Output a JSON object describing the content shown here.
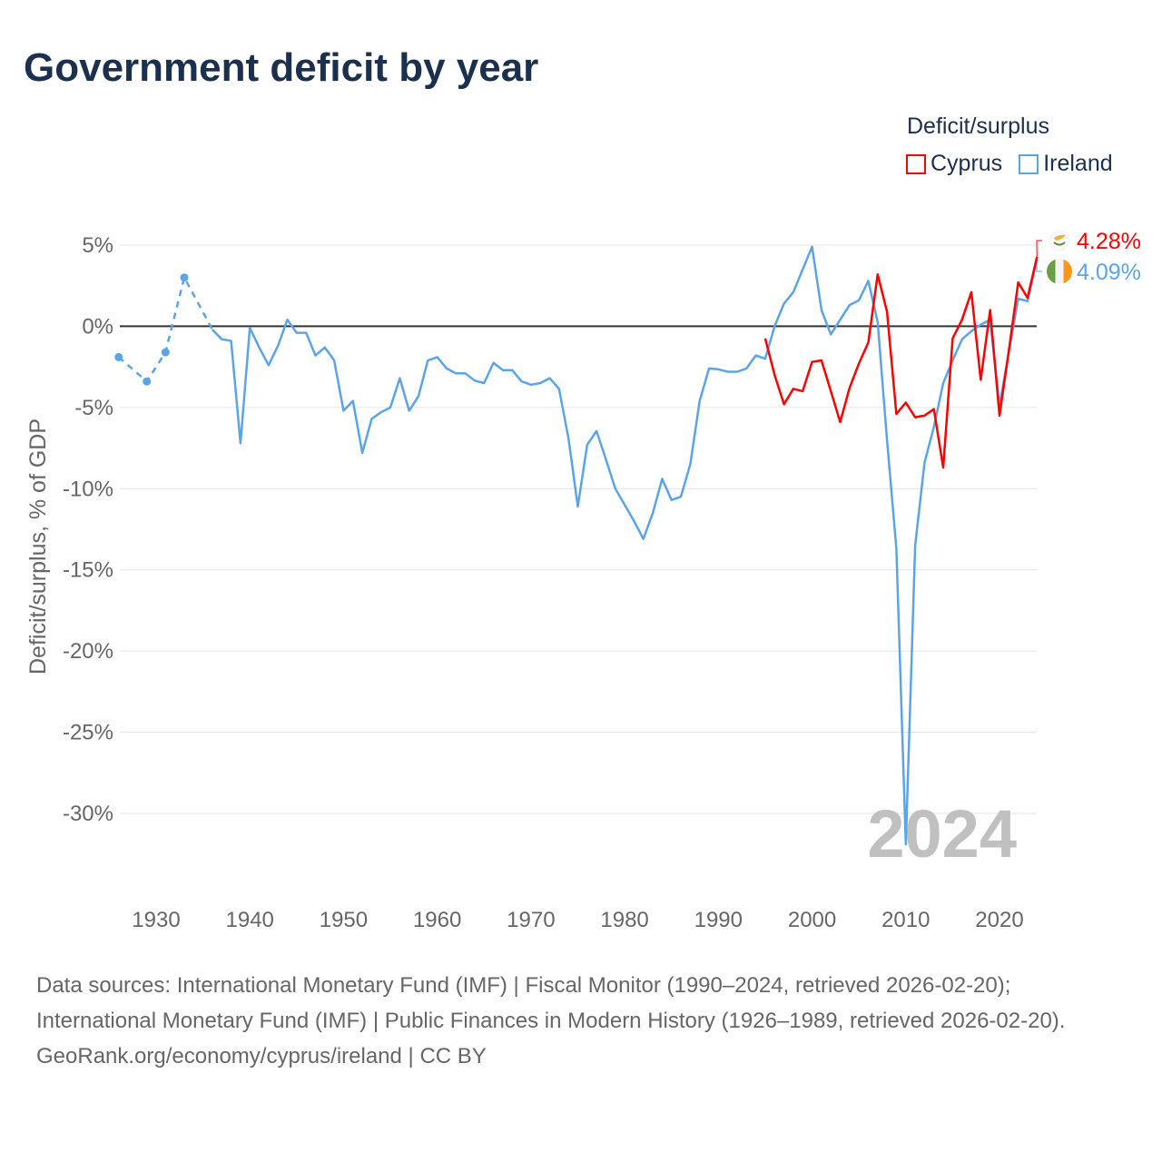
{
  "title": "Government deficit by year",
  "legend": {
    "title": "Deficit/surplus",
    "items": [
      {
        "name": "Cyprus",
        "color": "#ff0000"
      },
      {
        "name": "Ireland",
        "color": "#5ba4ea"
      }
    ]
  },
  "footer": {
    "sources": "Data sources: International Monetary Fund (IMF) | Fiscal Monitor (1990–2024, retrieved 2026-02-20); International Monetary Fund (IMF) | Public Finances in Modern History (1926–1989, retrieved 2026-02-20).",
    "credit": "GeoRank.org/economy/cyprus/ireland | CC BY"
  },
  "chart_data": {
    "type": "line",
    "title": "Government deficit by year",
    "xlabel": "",
    "ylabel": "Deficit/surplus, % of GDP",
    "xlim": [
      1926,
      2024
    ],
    "ylim": [
      -33,
      5
    ],
    "yticks": [
      5,
      0,
      -5,
      -10,
      -15,
      -20,
      -25,
      -30
    ],
    "ytick_labels": [
      "5%",
      "0%",
      "-5%",
      "-10%",
      "-15%",
      "-20%",
      "-25%",
      "-30%"
    ],
    "xticks": [
      1930,
      1940,
      1950,
      1960,
      1970,
      1980,
      1990,
      2000,
      2010,
      2020
    ],
    "xtick_labels": [
      "1930",
      "1940",
      "1950",
      "1960",
      "1970",
      "1980",
      "1990",
      "2000",
      "2010",
      "2020"
    ],
    "year_watermark": "2024",
    "grid": true,
    "legend_position": "top-right",
    "series": [
      {
        "name": "Ireland",
        "color": "#5ba4ea",
        "end_label": "4.09%",
        "sparse_points": [
          [
            1926,
            -1.9
          ],
          [
            1929,
            -3.4
          ],
          [
            1931,
            -1.6
          ],
          [
            1933,
            3.0
          ],
          [
            1936,
            -0.2
          ]
        ],
        "points": [
          [
            1936,
            -0.2
          ],
          [
            1937,
            -0.8
          ],
          [
            1938,
            -0.9
          ],
          [
            1939,
            -7.2
          ],
          [
            1940,
            -0.1
          ],
          [
            1941,
            -1.3
          ],
          [
            1942,
            -2.4
          ],
          [
            1943,
            -1.2
          ],
          [
            1944,
            0.4
          ],
          [
            1945,
            -0.4
          ],
          [
            1946,
            -0.4
          ],
          [
            1947,
            -1.8
          ],
          [
            1948,
            -1.3
          ],
          [
            1949,
            -2.1
          ],
          [
            1950,
            -5.2
          ],
          [
            1951,
            -4.6
          ],
          [
            1952,
            -7.8
          ],
          [
            1953,
            -5.7
          ],
          [
            1954,
            -5.3
          ],
          [
            1955,
            -5.0
          ],
          [
            1956,
            -3.2
          ],
          [
            1957,
            -5.2
          ],
          [
            1958,
            -4.3
          ],
          [
            1959,
            -2.1
          ],
          [
            1960,
            -1.9
          ],
          [
            1961,
            -2.6
          ],
          [
            1962,
            -2.9
          ],
          [
            1963,
            -2.9
          ],
          [
            1964,
            -3.35
          ],
          [
            1965,
            -3.5
          ],
          [
            1966,
            -2.25
          ],
          [
            1967,
            -2.7
          ],
          [
            1968,
            -2.7
          ],
          [
            1969,
            -3.4
          ],
          [
            1970,
            -3.6
          ],
          [
            1971,
            -3.5
          ],
          [
            1972,
            -3.2
          ],
          [
            1973,
            -3.85
          ],
          [
            1974,
            -6.9
          ],
          [
            1975,
            -11.1
          ],
          [
            1976,
            -7.3
          ],
          [
            1977,
            -6.45
          ],
          [
            1978,
            -8.2
          ],
          [
            1979,
            -10.0
          ],
          [
            1980,
            -11.0
          ],
          [
            1981,
            -12.0
          ],
          [
            1982,
            -13.1
          ],
          [
            1983,
            -11.5
          ],
          [
            1984,
            -9.4
          ],
          [
            1985,
            -10.7
          ],
          [
            1986,
            -10.5
          ],
          [
            1987,
            -8.5
          ],
          [
            1988,
            -4.6
          ],
          [
            1989,
            -2.6
          ],
          [
            1990,
            -2.65
          ],
          [
            1991,
            -2.8
          ],
          [
            1992,
            -2.8
          ],
          [
            1993,
            -2.6
          ],
          [
            1994,
            -1.8
          ],
          [
            1995,
            -2.0
          ],
          [
            1996,
            0.0
          ],
          [
            1997,
            1.4
          ],
          [
            1998,
            2.1
          ],
          [
            1999,
            3.5
          ],
          [
            2000,
            4.9
          ],
          [
            2001,
            1.0
          ],
          [
            2002,
            -0.5
          ],
          [
            2003,
            0.4
          ],
          [
            2004,
            1.3
          ],
          [
            2005,
            1.6
          ],
          [
            2006,
            2.8
          ],
          [
            2007,
            0.25
          ],
          [
            2008,
            -7.0
          ],
          [
            2009,
            -13.7
          ],
          [
            2010,
            -31.9
          ],
          [
            2011,
            -13.5
          ],
          [
            2012,
            -8.4
          ],
          [
            2013,
            -6.2
          ],
          [
            2014,
            -3.5
          ],
          [
            2015,
            -2.1
          ],
          [
            2016,
            -0.8
          ],
          [
            2017,
            -0.3
          ],
          [
            2018,
            0.1
          ],
          [
            2019,
            0.4
          ],
          [
            2020,
            -4.9
          ],
          [
            2021,
            -1.6
          ],
          [
            2022,
            1.7
          ],
          [
            2023,
            1.55
          ],
          [
            2024,
            4.09
          ]
        ]
      },
      {
        "name": "Cyprus",
        "color": "#ff0000",
        "end_label": "4.28%",
        "points": [
          [
            1995,
            -0.75
          ],
          [
            1996,
            -3.0
          ],
          [
            1997,
            -4.8
          ],
          [
            1998,
            -3.85
          ],
          [
            1999,
            -4.0
          ],
          [
            2000,
            -2.2
          ],
          [
            2001,
            -2.1
          ],
          [
            2002,
            -4.0
          ],
          [
            2003,
            -5.9
          ],
          [
            2004,
            -3.8
          ],
          [
            2005,
            -2.3
          ],
          [
            2006,
            -1.0
          ],
          [
            2007,
            3.2
          ],
          [
            2008,
            0.9
          ],
          [
            2009,
            -5.4
          ],
          [
            2010,
            -4.7
          ],
          [
            2011,
            -5.6
          ],
          [
            2012,
            -5.5
          ],
          [
            2013,
            -5.1
          ],
          [
            2014,
            -8.7
          ],
          [
            2015,
            -0.75
          ],
          [
            2016,
            0.4
          ],
          [
            2017,
            2.1
          ],
          [
            2018,
            -3.3
          ],
          [
            2019,
            1.0
          ],
          [
            2020,
            -5.5
          ],
          [
            2021,
            -1.5
          ],
          [
            2022,
            2.7
          ],
          [
            2023,
            1.75
          ],
          [
            2024,
            4.28
          ]
        ]
      }
    ]
  }
}
